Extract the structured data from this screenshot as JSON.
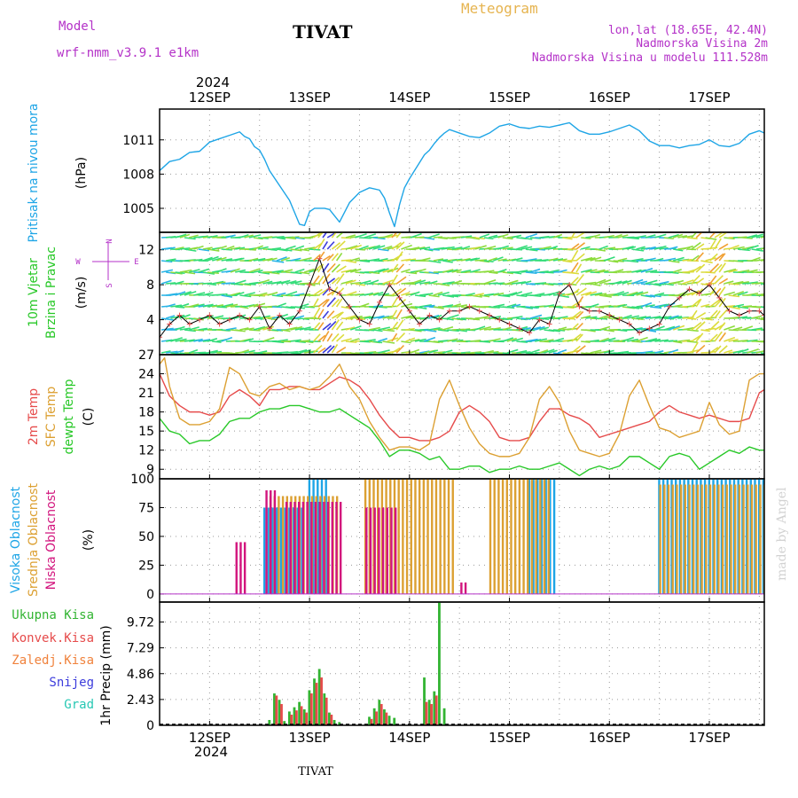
{
  "header": {
    "model_label": "Model",
    "model_name": "wrf-nmm_v3.9.1 e1km",
    "station": "TIVAT",
    "title": "Meteogram",
    "lonlat": "lon,lat (18.65E, 42.4N)",
    "elevation": "Nadmorska Visina 2m",
    "model_elevation": "Nadmorska Visina u modelu 111.528m",
    "footer_station": "TIVAT",
    "credit": "made by Angel"
  },
  "colors": {
    "pressure": "#1ea5e6",
    "t2m": "#e64b4b",
    "sfc": "#dca032",
    "dewpt": "#28c828",
    "cloud_high": "#1ea5e6",
    "cloud_mid": "#dca032",
    "cloud_low": "#d2147d",
    "precip_total": "#32b432",
    "precip_conv": "#e64b4b",
    "precip_freezing": "#f0823c",
    "precip_snow": "#3c3cdc",
    "precip_hail": "#28c8b4",
    "title": "#e6b450",
    "meta": "#b432c8"
  },
  "time_axis": {
    "year": "2024",
    "day_labels": [
      "12SEP",
      "13SEP",
      "14SEP",
      "15SEP",
      "16SEP",
      "17SEP"
    ],
    "start_day_offset": -0.5,
    "end_day_offset": 5.55
  },
  "chart_data": [
    {
      "type": "line",
      "title": "Pritisak na nivou mora",
      "ylabel": "(hPa)",
      "yticks": [
        1005,
        1008,
        1011
      ],
      "ylim": [
        1002.9,
        1013.7
      ],
      "grid": true,
      "x_unit": "days from 12SEP 00UTC",
      "series": [
        {
          "name": "Pritisak na nivou mora",
          "x": [
            -0.5,
            -0.4,
            -0.3,
            -0.2,
            -0.1,
            0.0,
            0.1,
            0.2,
            0.3,
            0.35,
            0.4,
            0.45,
            0.5,
            0.55,
            0.6,
            0.7,
            0.8,
            0.9,
            0.95,
            1.0,
            1.05,
            1.1,
            1.15,
            1.2,
            1.3,
            1.4,
            1.5,
            1.6,
            1.7,
            1.75,
            1.8,
            1.85,
            1.9,
            1.95,
            2.0,
            2.05,
            2.1,
            2.15,
            2.2,
            2.25,
            2.3,
            2.35,
            2.4,
            2.5,
            2.6,
            2.7,
            2.8,
            2.9,
            3.0,
            3.1,
            3.2,
            3.3,
            3.4,
            3.5,
            3.6,
            3.7,
            3.8,
            3.9,
            4.0,
            4.1,
            4.2,
            4.3,
            4.4,
            4.5,
            4.6,
            4.7,
            4.8,
            4.9,
            5.0,
            5.1,
            5.2,
            5.3,
            5.4,
            5.5,
            5.55
          ],
          "values": [
            1008.3,
            1009.1,
            1009.3,
            1009.9,
            1010.0,
            1010.8,
            1011.1,
            1011.4,
            1011.7,
            1011.3,
            1011.1,
            1010.4,
            1010.1,
            1009.3,
            1008.3,
            1007.0,
            1005.7,
            1003.6,
            1003.5,
            1004.7,
            1005.0,
            1005.0,
            1005.0,
            1004.9,
            1003.8,
            1005.5,
            1006.4,
            1006.8,
            1006.6,
            1005.9,
            1004.6,
            1003.4,
            1005.3,
            1006.8,
            1007.6,
            1008.3,
            1009.0,
            1009.7,
            1010.1,
            1010.7,
            1011.2,
            1011.6,
            1011.9,
            1011.6,
            1011.3,
            1011.2,
            1011.6,
            1012.2,
            1012.4,
            1012.1,
            1012.0,
            1012.2,
            1012.1,
            1012.3,
            1012.5,
            1011.8,
            1011.5,
            1011.5,
            1011.7,
            1012.0,
            1012.3,
            1011.8,
            1010.9,
            1010.5,
            1010.5,
            1010.3,
            1010.5,
            1010.6,
            1011.0,
            1010.5,
            1010.4,
            1010.7,
            1011.5,
            1011.8,
            1011.6
          ]
        }
      ]
    },
    {
      "type": "line",
      "title": "10m Vjetar Brzina i Pravac",
      "ylabel": "(m/s)",
      "yticks": [
        4,
        8,
        12
      ],
      "ylim": [
        0,
        14
      ],
      "grid": true,
      "compass": {
        "n": "N",
        "e": "E",
        "w": "W",
        "s": "S"
      },
      "series": [
        {
          "name": "10m Vjetar Brzina",
          "x": [
            -0.5,
            -0.4,
            -0.3,
            -0.2,
            -0.1,
            0.0,
            0.1,
            0.2,
            0.3,
            0.4,
            0.5,
            0.6,
            0.7,
            0.8,
            0.9,
            1.0,
            1.1,
            1.2,
            1.3,
            1.4,
            1.5,
            1.6,
            1.7,
            1.8,
            1.9,
            2.0,
            2.1,
            2.2,
            2.3,
            2.4,
            2.5,
            2.6,
            2.7,
            2.8,
            2.9,
            3.0,
            3.1,
            3.2,
            3.3,
            3.4,
            3.5,
            3.6,
            3.7,
            3.8,
            3.9,
            4.0,
            4.1,
            4.2,
            4.3,
            4.4,
            4.5,
            4.6,
            4.7,
            4.8,
            4.9,
            5.0,
            5.1,
            5.2,
            5.3,
            5.4,
            5.5,
            5.55
          ],
          "values": [
            2.0,
            3.5,
            4.5,
            3.5,
            4.0,
            4.5,
            3.5,
            4.0,
            4.5,
            4.0,
            5.5,
            3.0,
            4.5,
            3.5,
            5.0,
            8.0,
            11.0,
            7.5,
            7.0,
            5.5,
            4.0,
            3.5,
            6.0,
            8.0,
            6.5,
            5.0,
            3.5,
            4.5,
            4.0,
            5.0,
            5.0,
            5.5,
            5.0,
            4.5,
            4.0,
            3.5,
            3.0,
            2.5,
            4.0,
            3.5,
            7.0,
            8.0,
            5.5,
            5.0,
            5.0,
            4.5,
            4.0,
            3.5,
            2.5,
            3.0,
            3.5,
            5.5,
            6.5,
            7.5,
            7.0,
            8.0,
            6.5,
            5.0,
            4.5,
            5.0,
            5.0,
            4.5
          ]
        }
      ]
    },
    {
      "type": "line",
      "title": "2m Temp / SFC Temp / dewpt Temp",
      "ylabel": "(C)",
      "yticks": [
        9,
        12,
        15,
        18,
        21,
        24,
        27
      ],
      "ylim": [
        7.5,
        27
      ],
      "grid": true,
      "series": [
        {
          "name": "2m Temp",
          "x": [
            -0.5,
            -0.4,
            -0.3,
            -0.2,
            -0.1,
            0.0,
            0.1,
            0.2,
            0.3,
            0.4,
            0.5,
            0.6,
            0.7,
            0.8,
            0.9,
            1.0,
            1.1,
            1.2,
            1.3,
            1.4,
            1.5,
            1.6,
            1.7,
            1.8,
            1.9,
            2.0,
            2.1,
            2.2,
            2.3,
            2.4,
            2.5,
            2.6,
            2.7,
            2.8,
            2.9,
            3.0,
            3.1,
            3.2,
            3.3,
            3.4,
            3.5,
            3.6,
            3.7,
            3.8,
            3.9,
            4.0,
            4.1,
            4.2,
            4.3,
            4.4,
            4.5,
            4.6,
            4.7,
            4.8,
            4.9,
            5.0,
            5.1,
            5.2,
            5.3,
            5.4,
            5.5,
            5.55
          ],
          "values": [
            24.0,
            20.5,
            19.0,
            18.0,
            18.0,
            17.5,
            18.0,
            20.5,
            21.5,
            20.5,
            19.0,
            21.5,
            21.5,
            22.0,
            22.0,
            21.5,
            21.5,
            22.5,
            23.5,
            23.0,
            22.0,
            20.0,
            17.5,
            15.5,
            14.0,
            14.0,
            13.5,
            13.5,
            14.0,
            15.0,
            18.0,
            19.0,
            18.0,
            16.5,
            14.0,
            13.5,
            13.5,
            14.0,
            16.5,
            18.5,
            18.5,
            17.5,
            17.0,
            16.0,
            14.0,
            14.5,
            15.0,
            15.5,
            16.0,
            16.5,
            18.0,
            19.0,
            18.0,
            17.5,
            17.0,
            17.5,
            17.0,
            16.5,
            16.5,
            17.0,
            21.0,
            21.5
          ]
        },
        {
          "name": "SFC Temp",
          "x": [
            -0.5,
            -0.45,
            -0.4,
            -0.3,
            -0.2,
            -0.1,
            0.0,
            0.1,
            0.2,
            0.3,
            0.4,
            0.5,
            0.6,
            0.7,
            0.8,
            0.9,
            1.0,
            1.1,
            1.2,
            1.3,
            1.4,
            1.5,
            1.6,
            1.7,
            1.8,
            1.9,
            2.0,
            2.1,
            2.2,
            2.3,
            2.4,
            2.5,
            2.6,
            2.7,
            2.8,
            2.9,
            3.0,
            3.1,
            3.2,
            3.3,
            3.4,
            3.5,
            3.6,
            3.7,
            3.8,
            3.9,
            4.0,
            4.1,
            4.2,
            4.3,
            4.4,
            4.5,
            4.6,
            4.7,
            4.8,
            4.9,
            5.0,
            5.1,
            5.2,
            5.3,
            5.4,
            5.5,
            5.55
          ],
          "values": [
            25.5,
            26.5,
            22.0,
            17.0,
            16.0,
            16.0,
            16.5,
            18.5,
            25.0,
            24.0,
            21.0,
            20.5,
            22.0,
            22.5,
            21.5,
            22.0,
            21.5,
            22.0,
            23.5,
            25.5,
            22.0,
            20.0,
            16.5,
            14.0,
            12.0,
            12.5,
            12.5,
            12.0,
            13.0,
            20.0,
            23.0,
            19.0,
            15.5,
            13.0,
            11.5,
            11.0,
            11.0,
            11.5,
            14.0,
            20.0,
            22.0,
            19.5,
            15.0,
            12.0,
            11.5,
            11.0,
            11.5,
            14.5,
            20.5,
            23.0,
            19.0,
            15.5,
            15.0,
            14.0,
            14.5,
            15.0,
            19.5,
            16.0,
            14.5,
            15.0,
            23.0,
            24.0,
            24.0
          ]
        },
        {
          "name": "dewpt Temp",
          "x": [
            -0.5,
            -0.4,
            -0.3,
            -0.2,
            -0.1,
            0.0,
            0.1,
            0.2,
            0.3,
            0.4,
            0.5,
            0.6,
            0.7,
            0.8,
            0.9,
            1.0,
            1.1,
            1.2,
            1.3,
            1.4,
            1.5,
            1.6,
            1.7,
            1.8,
            1.9,
            2.0,
            2.1,
            2.2,
            2.3,
            2.4,
            2.5,
            2.6,
            2.7,
            2.8,
            2.9,
            3.0,
            3.1,
            3.2,
            3.3,
            3.4,
            3.5,
            3.6,
            3.7,
            3.8,
            3.9,
            4.0,
            4.1,
            4.2,
            4.3,
            4.4,
            4.5,
            4.6,
            4.7,
            4.8,
            4.9,
            5.0,
            5.1,
            5.2,
            5.3,
            5.4,
            5.5,
            5.55
          ],
          "values": [
            17.0,
            15.0,
            14.5,
            13.0,
            13.5,
            13.5,
            14.5,
            16.5,
            17.0,
            17.0,
            18.0,
            18.5,
            18.5,
            19.0,
            19.0,
            18.5,
            18.0,
            18.0,
            18.5,
            17.5,
            16.5,
            15.5,
            13.5,
            11.0,
            12.0,
            12.0,
            11.5,
            10.5,
            11.0,
            9.0,
            9.0,
            9.5,
            9.5,
            8.5,
            9.0,
            9.0,
            9.5,
            9.0,
            9.0,
            9.5,
            10.0,
            9.0,
            8.0,
            9.0,
            9.5,
            9.0,
            9.5,
            11.0,
            11.0,
            10.0,
            9.0,
            11.0,
            11.5,
            11.0,
            9.0,
            10.0,
            11.0,
            12.0,
            11.5,
            12.5,
            12.0,
            12.0
          ]
        }
      ]
    },
    {
      "type": "bar",
      "title": "Visoka Oblacnost / Srednja Oblacnost / Niska Oblacnost",
      "ylabel": "(%)",
      "yticks": [
        0,
        25,
        50,
        75,
        100
      ],
      "ylim": [
        -7,
        100
      ],
      "grid": true,
      "series": [
        {
          "name": "Visoka Oblacnost",
          "segments": [
            [
              0.55,
              0.95,
              75
            ],
            [
              1.0,
              1.2,
              100
            ],
            [
              3.2,
              3.45,
              100
            ],
            [
              4.5,
              5.55,
              100
            ]
          ]
        },
        {
          "name": "Srednja Oblacnost",
          "segments": [
            [
              0.6,
              1.3,
              85
            ],
            [
              1.55,
              2.45,
              100
            ],
            [
              2.8,
              3.4,
              100
            ],
            [
              4.5,
              5.55,
              95
            ]
          ]
        },
        {
          "name": "Niska Oblacnost",
          "segments": [
            [
              0.25,
              0.35,
              45
            ],
            [
              0.55,
              0.65,
              90
            ],
            [
              0.75,
              1.3,
              80
            ],
            [
              1.55,
              1.85,
              75
            ],
            [
              2.5,
              2.55,
              10
            ]
          ]
        }
      ]
    },
    {
      "type": "bar",
      "title": "1hr Precip",
      "ylabel": "1hr Precip (mm)",
      "yticks": [
        0,
        2.43,
        4.86,
        7.29,
        9.72
      ],
      "ylim": [
        0,
        11.6
      ],
      "grid": true,
      "series": [
        {
          "name": "Ukupna Kisa",
          "x": [
            0.6,
            0.65,
            0.7,
            0.75,
            0.8,
            0.85,
            0.9,
            0.95,
            1.0,
            1.05,
            1.1,
            1.15,
            1.2,
            1.25,
            1.3,
            1.6,
            1.65,
            1.7,
            1.75,
            1.8,
            1.85,
            2.15,
            2.2,
            2.25,
            2.3,
            2.35
          ],
          "values": [
            0.5,
            3.0,
            2.4,
            0.4,
            1.3,
            1.7,
            2.2,
            1.5,
            3.3,
            4.4,
            5.3,
            3.0,
            1.2,
            0.5,
            0.3,
            0.8,
            1.6,
            2.4,
            1.5,
            0.9,
            0.7,
            4.5,
            2.4,
            3.2,
            11.9,
            1.6
          ]
        },
        {
          "name": "Konvek.Kisa",
          "x": [
            0.65,
            0.7,
            0.8,
            0.85,
            0.9,
            0.95,
            1.0,
            1.05,
            1.1,
            1.15,
            1.2,
            1.6,
            1.65,
            1.7,
            1.75,
            2.15,
            2.2,
            2.25
          ],
          "values": [
            2.8,
            2.0,
            1.0,
            1.4,
            1.8,
            1.2,
            3.0,
            4.0,
            4.5,
            2.6,
            1.0,
            0.6,
            1.3,
            2.0,
            1.2,
            2.2,
            2.0,
            2.8
          ]
        },
        {
          "name": "Zaledj.Kisa",
          "x": [],
          "values": []
        },
        {
          "name": "Snijeg",
          "x": [],
          "values": []
        },
        {
          "name": "Grad",
          "x": [],
          "values": []
        }
      ]
    }
  ]
}
